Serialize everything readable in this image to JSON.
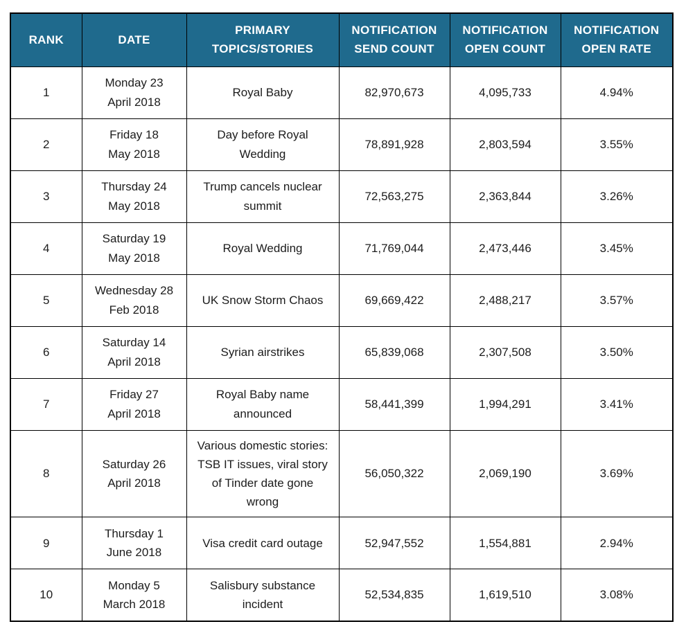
{
  "colors": {
    "header_bg": "#1f6a8d",
    "header_text": "#ffffff",
    "border": "#000000",
    "body_text": "#1c1c1c"
  },
  "table": {
    "columns": [
      "RANK",
      "DATE",
      "PRIMARY TOPICS/STORIES",
      "NOTIFICATION SEND COUNT",
      "NOTIFICATION OPEN COUNT",
      "NOTIFICATION OPEN RATE"
    ],
    "rows": [
      {
        "rank": "1",
        "date": "Monday 23\nApril 2018",
        "topic": "Royal Baby",
        "send": "82,970,673",
        "open": "4,095,733",
        "rate": "4.94%"
      },
      {
        "rank": "2",
        "date": "Friday 18\nMay 2018",
        "topic": "Day before Royal Wedding",
        "send": "78,891,928",
        "open": "2,803,594",
        "rate": "3.55%"
      },
      {
        "rank": "3",
        "date": "Thursday 24\nMay 2018",
        "topic": "Trump cancels nuclear summit",
        "send": "72,563,275",
        "open": "2,363,844",
        "rate": "3.26%"
      },
      {
        "rank": "4",
        "date": "Saturday 19\nMay 2018",
        "topic": "Royal Wedding",
        "send": "71,769,044",
        "open": "2,473,446",
        "rate": "3.45%"
      },
      {
        "rank": "5",
        "date": "Wednesday 28\nFeb 2018",
        "topic": "UK Snow Storm Chaos",
        "send": "69,669,422",
        "open": "2,488,217",
        "rate": "3.57%"
      },
      {
        "rank": "6",
        "date": "Saturday 14\nApril 2018",
        "topic": "Syrian airstrikes",
        "send": "65,839,068",
        "open": "2,307,508",
        "rate": "3.50%"
      },
      {
        "rank": "7",
        "date": "Friday 27\nApril 2018",
        "topic": "Royal Baby name announced",
        "send": "58,441,399",
        "open": "1,994,291",
        "rate": "3.41%"
      },
      {
        "rank": "8",
        "date": "Saturday 26\nApril 2018",
        "topic": "Various domestic stories: TSB IT issues, viral story of Tinder date gone wrong",
        "send": "56,050,322",
        "open": "2,069,190",
        "rate": "3.69%"
      },
      {
        "rank": "9",
        "date": "Thursday 1\nJune 2018",
        "topic": "Visa credit card outage",
        "send": "52,947,552",
        "open": "1,554,881",
        "rate": "2.94%"
      },
      {
        "rank": "10",
        "date": "Monday 5\nMarch 2018",
        "topic": "Salisbury substance incident",
        "send": "52,534,835",
        "open": "1,619,510",
        "rate": "3.08%"
      }
    ]
  },
  "chart_data": {
    "type": "table",
    "columns": [
      "RANK",
      "DATE",
      "PRIMARY TOPICS/STORIES",
      "NOTIFICATION SEND COUNT",
      "NOTIFICATION OPEN COUNT",
      "NOTIFICATION OPEN RATE"
    ],
    "rows": [
      [
        1,
        "Monday 23 April 2018",
        "Royal Baby",
        82970673,
        4095733,
        4.94
      ],
      [
        2,
        "Friday 18 May 2018",
        "Day before Royal Wedding",
        78891928,
        2803594,
        3.55
      ],
      [
        3,
        "Thursday 24 May 2018",
        "Trump cancels nuclear summit",
        72563275,
        2363844,
        3.26
      ],
      [
        4,
        "Saturday 19 May 2018",
        "Royal Wedding",
        71769044,
        2473446,
        3.45
      ],
      [
        5,
        "Wednesday 28 Feb 2018",
        "UK Snow Storm Chaos",
        69669422,
        2488217,
        3.57
      ],
      [
        6,
        "Saturday 14 April 2018",
        "Syrian airstrikes",
        65839068,
        2307508,
        3.5
      ],
      [
        7,
        "Friday 27 April 2018",
        "Royal Baby name announced",
        58441399,
        1994291,
        3.41
      ],
      [
        8,
        "Saturday 26 April 2018",
        "Various domestic stories: TSB IT issues, viral story of Tinder date gone wrong",
        56050322,
        2069190,
        3.69
      ],
      [
        9,
        "Thursday 1 June 2018",
        "Visa credit card outage",
        52947552,
        1554881,
        2.94
      ],
      [
        10,
        "Monday 5 March 2018",
        "Salisbury substance incident",
        52534835,
        1619510,
        3.08
      ]
    ]
  }
}
